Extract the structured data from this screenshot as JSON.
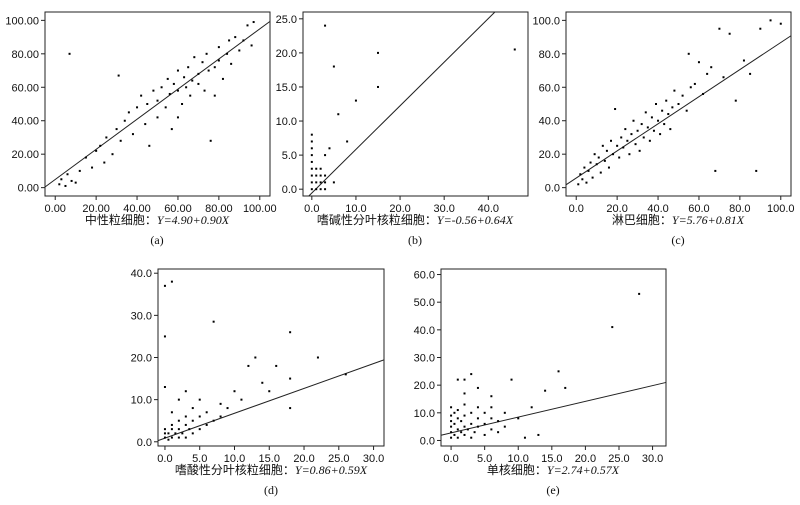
{
  "chart_data": [
    {
      "type": "scatter",
      "panel_label": "(a)",
      "xlabel": "中性粒细胞：",
      "equation": "Y=4.90+0.90X",
      "regression": {
        "intercept": 4.9,
        "slope": 0.9
      },
      "xlim": [
        -5,
        105
      ],
      "ylim": [
        -5,
        105
      ],
      "xticks": [
        "0.00",
        "20.00",
        "40.00",
        "60.00",
        "80.00",
        "100.00"
      ],
      "yticks": [
        "0.00",
        "20.00",
        "40.00",
        "60.00",
        "80.00",
        "100.00"
      ],
      "points": [
        [
          2,
          2
        ],
        [
          3,
          5
        ],
        [
          5,
          1
        ],
        [
          6,
          8
        ],
        [
          8,
          4
        ],
        [
          10,
          3
        ],
        [
          12,
          10
        ],
        [
          7,
          80
        ],
        [
          15,
          18
        ],
        [
          18,
          12
        ],
        [
          20,
          22
        ],
        [
          22,
          25
        ],
        [
          24,
          15
        ],
        [
          25,
          30
        ],
        [
          28,
          20
        ],
        [
          30,
          35
        ],
        [
          31,
          67
        ],
        [
          32,
          28
        ],
        [
          34,
          40
        ],
        [
          36,
          45
        ],
        [
          38,
          32
        ],
        [
          40,
          48
        ],
        [
          42,
          55
        ],
        [
          44,
          38
        ],
        [
          45,
          50
        ],
        [
          46,
          25
        ],
        [
          48,
          58
        ],
        [
          50,
          52
        ],
        [
          50,
          42
        ],
        [
          52,
          60
        ],
        [
          54,
          48
        ],
        [
          55,
          65
        ],
        [
          56,
          56
        ],
        [
          57,
          35
        ],
        [
          58,
          62
        ],
        [
          60,
          58
        ],
        [
          60,
          70
        ],
        [
          62,
          50
        ],
        [
          63,
          66
        ],
        [
          64,
          60
        ],
        [
          65,
          72
        ],
        [
          66,
          55
        ],
        [
          67,
          64
        ],
        [
          68,
          78
        ],
        [
          70,
          62
        ],
        [
          70,
          68
        ],
        [
          72,
          75
        ],
        [
          73,
          58
        ],
        [
          74,
          80
        ],
        [
          75,
          70
        ],
        [
          76,
          28
        ],
        [
          78,
          72
        ],
        [
          80,
          76
        ],
        [
          80,
          84
        ],
        [
          82,
          65
        ],
        [
          84,
          80
        ],
        [
          85,
          88
        ],
        [
          86,
          74
        ],
        [
          88,
          90
        ],
        [
          90,
          82
        ],
        [
          92,
          88
        ],
        [
          94,
          97
        ],
        [
          96,
          85
        ],
        [
          97,
          99
        ],
        [
          78,
          55
        ],
        [
          60,
          42
        ]
      ]
    },
    {
      "type": "scatter",
      "panel_label": "(b)",
      "xlabel": "嗜碱性分叶核粒细胞：",
      "equation": "Y=-0.56+0.64X",
      "regression": {
        "intercept": -0.56,
        "slope": 0.64
      },
      "xlim": [
        -2,
        49
      ],
      "ylim": [
        -1,
        26
      ],
      "xticks": [
        "0.0",
        "10.0",
        "20.0",
        "30.0",
        "40.0"
      ],
      "yticks": [
        "0.0",
        "5.0",
        "10.0",
        "15.0",
        "20.0",
        "25.0"
      ],
      "points": [
        [
          0,
          0
        ],
        [
          0,
          1
        ],
        [
          0,
          2
        ],
        [
          0,
          3
        ],
        [
          0,
          4
        ],
        [
          0,
          5
        ],
        [
          0,
          6
        ],
        [
          0,
          7
        ],
        [
          0,
          8
        ],
        [
          1,
          0
        ],
        [
          1,
          1
        ],
        [
          1,
          2
        ],
        [
          1,
          3
        ],
        [
          2,
          0
        ],
        [
          2,
          1
        ],
        [
          2,
          2
        ],
        [
          2,
          3
        ],
        [
          3,
          0
        ],
        [
          3,
          1
        ],
        [
          3,
          2
        ],
        [
          3,
          5
        ],
        [
          3,
          24
        ],
        [
          4,
          6
        ],
        [
          5,
          18
        ],
        [
          5,
          1
        ],
        [
          6,
          11
        ],
        [
          8,
          7
        ],
        [
          10,
          13
        ],
        [
          15,
          15
        ],
        [
          15,
          20
        ],
        [
          46,
          20.5
        ]
      ]
    },
    {
      "type": "scatter",
      "panel_label": "(c)",
      "xlabel": "淋巴细胞：",
      "equation": "Y=5.76+0.81X",
      "regression": {
        "intercept": 5.76,
        "slope": 0.81
      },
      "xlim": [
        -5,
        105
      ],
      "ylim": [
        -5,
        105
      ],
      "xticks": [
        "0.0",
        "20.0",
        "40.0",
        "60.0",
        "80.0",
        "100.0"
      ],
      "yticks": [
        "0.0",
        "20.0",
        "40.0",
        "60.0",
        "80.0",
        "100.0"
      ],
      "points": [
        [
          1,
          2
        ],
        [
          2,
          8
        ],
        [
          3,
          5
        ],
        [
          4,
          12
        ],
        [
          5,
          3
        ],
        [
          6,
          10
        ],
        [
          7,
          15
        ],
        [
          8,
          6
        ],
        [
          9,
          20
        ],
        [
          10,
          14
        ],
        [
          11,
          18
        ],
        [
          12,
          9
        ],
        [
          13,
          25
        ],
        [
          14,
          16
        ],
        [
          15,
          22
        ],
        [
          16,
          12
        ],
        [
          17,
          28
        ],
        [
          18,
          20
        ],
        [
          19,
          47
        ],
        [
          20,
          25
        ],
        [
          21,
          18
        ],
        [
          22,
          30
        ],
        [
          23,
          24
        ],
        [
          24,
          35
        ],
        [
          25,
          28
        ],
        [
          26,
          20
        ],
        [
          27,
          32
        ],
        [
          28,
          40
        ],
        [
          29,
          26
        ],
        [
          30,
          34
        ],
        [
          31,
          22
        ],
        [
          32,
          38
        ],
        [
          33,
          30
        ],
        [
          34,
          45
        ],
        [
          35,
          36
        ],
        [
          36,
          28
        ],
        [
          37,
          42
        ],
        [
          38,
          34
        ],
        [
          39,
          50
        ],
        [
          40,
          40
        ],
        [
          41,
          32
        ],
        [
          42,
          46
        ],
        [
          43,
          38
        ],
        [
          44,
          52
        ],
        [
          45,
          44
        ],
        [
          46,
          35
        ],
        [
          47,
          48
        ],
        [
          48,
          58
        ],
        [
          50,
          50
        ],
        [
          52,
          55
        ],
        [
          54,
          46
        ],
        [
          55,
          80
        ],
        [
          56,
          60
        ],
        [
          58,
          62
        ],
        [
          60,
          75
        ],
        [
          62,
          56
        ],
        [
          64,
          68
        ],
        [
          66,
          72
        ],
        [
          68,
          10
        ],
        [
          70,
          95
        ],
        [
          72,
          66
        ],
        [
          75,
          92
        ],
        [
          78,
          52
        ],
        [
          82,
          76
        ],
        [
          85,
          68
        ],
        [
          88,
          10
        ],
        [
          90,
          95
        ],
        [
          95,
          100
        ],
        [
          100,
          98
        ]
      ]
    },
    {
      "type": "scatter",
      "panel_label": "(d)",
      "xlabel": "嗜酸性分叶核粒细胞：",
      "equation": "Y=0.86+0.59X",
      "regression": {
        "intercept": 0.86,
        "slope": 0.59
      },
      "xlim": [
        -1,
        31.5
      ],
      "ylim": [
        -1,
        41
      ],
      "xticks": [
        "0.0",
        "5.0",
        "10.0",
        "15.0",
        "20.0",
        "25.0",
        "30.0"
      ],
      "yticks": [
        "0.0",
        "10.0",
        "20.0",
        "30.0",
        "40.0"
      ],
      "points": [
        [
          0,
          1
        ],
        [
          0,
          2
        ],
        [
          0,
          3
        ],
        [
          0.5,
          0.5
        ],
        [
          0.5,
          2
        ],
        [
          1,
          1
        ],
        [
          1,
          3
        ],
        [
          1,
          4
        ],
        [
          1.5,
          2
        ],
        [
          2,
          1
        ],
        [
          2,
          3
        ],
        [
          2,
          5
        ],
        [
          2.5,
          2
        ],
        [
          3,
          1
        ],
        [
          3,
          4
        ],
        [
          3,
          6
        ],
        [
          3.5,
          3
        ],
        [
          4,
          2
        ],
        [
          4,
          5
        ],
        [
          4,
          8
        ],
        [
          5,
          3
        ],
        [
          5,
          6
        ],
        [
          5,
          10
        ],
        [
          6,
          4
        ],
        [
          6,
          7
        ],
        [
          7,
          5
        ],
        [
          7,
          28.5
        ],
        [
          8,
          6
        ],
        [
          8,
          9
        ],
        [
          9,
          8
        ],
        [
          10,
          12
        ],
        [
          11,
          10
        ],
        [
          12,
          18
        ],
        [
          13,
          20
        ],
        [
          14,
          14
        ],
        [
          15,
          12
        ],
        [
          16,
          18
        ],
        [
          18,
          15
        ],
        [
          18,
          8
        ],
        [
          18,
          26
        ],
        [
          22,
          20
        ],
        [
          26,
          16
        ],
        [
          0,
          25
        ],
        [
          0,
          37
        ],
        [
          1,
          38
        ],
        [
          0,
          13
        ],
        [
          1,
          7
        ],
        [
          2,
          10
        ],
        [
          3,
          12
        ]
      ]
    },
    {
      "type": "scatter",
      "panel_label": "(e)",
      "xlabel": "单核细胞：",
      "equation": "Y=2.74+0.57X",
      "regression": {
        "intercept": 2.74,
        "slope": 0.57
      },
      "xlim": [
        -1.5,
        32
      ],
      "ylim": [
        -2,
        62
      ],
      "xticks": [
        "0.0",
        "5.0",
        "10.0",
        "15.0",
        "20.0",
        "25.0",
        "30.0"
      ],
      "yticks": [
        "0.0",
        "10.0",
        "20.0",
        "30.0",
        "40.0",
        "50.0",
        "60.0"
      ],
      "points": [
        [
          0,
          1
        ],
        [
          0,
          3
        ],
        [
          0,
          5
        ],
        [
          0,
          7
        ],
        [
          0,
          9
        ],
        [
          0,
          12
        ],
        [
          0.5,
          2
        ],
        [
          0.5,
          6
        ],
        [
          0.5,
          10
        ],
        [
          1,
          1
        ],
        [
          1,
          4
        ],
        [
          1,
          8
        ],
        [
          1,
          11
        ],
        [
          1,
          22
        ],
        [
          1.5,
          3
        ],
        [
          1.5,
          7
        ],
        [
          2,
          2
        ],
        [
          2,
          5
        ],
        [
          2,
          9
        ],
        [
          2,
          13
        ],
        [
          2,
          22
        ],
        [
          2.5,
          4
        ],
        [
          3,
          1
        ],
        [
          3,
          6
        ],
        [
          3,
          10
        ],
        [
          3,
          24
        ],
        [
          3.5,
          3
        ],
        [
          4,
          5
        ],
        [
          4,
          8
        ],
        [
          4,
          12
        ],
        [
          5,
          2
        ],
        [
          5,
          6
        ],
        [
          5,
          10
        ],
        [
          6,
          4
        ],
        [
          6,
          8
        ],
        [
          6,
          12
        ],
        [
          7,
          3
        ],
        [
          7,
          7
        ],
        [
          8,
          5
        ],
        [
          8,
          10
        ],
        [
          9,
          22
        ],
        [
          10,
          8
        ],
        [
          11,
          1
        ],
        [
          12,
          12
        ],
        [
          13,
          2
        ],
        [
          14,
          18
        ],
        [
          16,
          25
        ],
        [
          17,
          19
        ],
        [
          24,
          41
        ],
        [
          28,
          53
        ],
        [
          4,
          19
        ],
        [
          2,
          17
        ],
        [
          6,
          16
        ]
      ]
    }
  ]
}
